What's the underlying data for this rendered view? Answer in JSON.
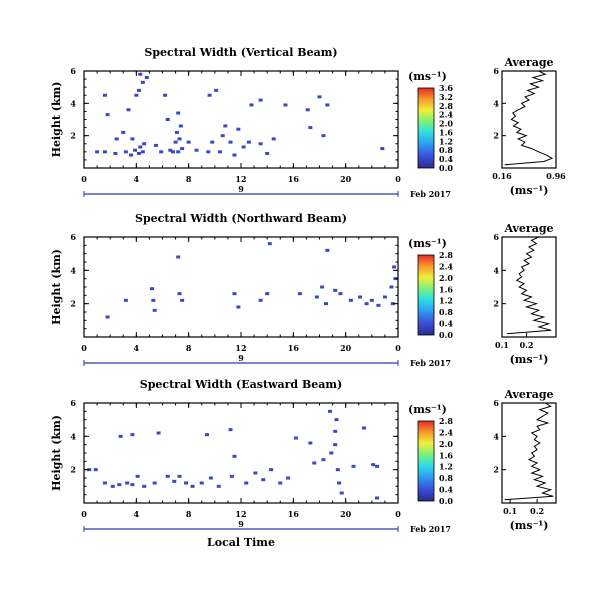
{
  "chart_data": [
    {
      "type": "heatmap",
      "title": "Spectral Width (Vertical Beam)",
      "ylabel": "Height (km)",
      "xlabel": "",
      "ylim": [
        0,
        6
      ],
      "xlim": [
        0,
        24
      ],
      "xticks": [
        "0",
        "4",
        "8",
        "12",
        "16",
        "20",
        "0"
      ],
      "yticks": [
        "2",
        "4",
        "6"
      ],
      "date_label": "9",
      "month_label": "Feb 2017",
      "colorbar": {
        "unit": "(ms⁻¹)",
        "ticks": [
          "0.0",
          "0.4",
          "0.8",
          "1.2",
          "1.6",
          "2.0",
          "2.4",
          "2.8",
          "3.2",
          "3.6"
        ]
      },
      "points": [
        [
          1.0,
          1.0
        ],
        [
          1.6,
          1.0
        ],
        [
          2.4,
          0.9
        ],
        [
          3.2,
          1.0
        ],
        [
          3.6,
          0.8
        ],
        [
          3.9,
          1.1
        ],
        [
          4.2,
          0.9
        ],
        [
          4.5,
          1.0
        ],
        [
          4.3,
          1.3
        ],
        [
          4.6,
          1.5
        ],
        [
          5.5,
          1.4
        ],
        [
          6.6,
          1.1
        ],
        [
          6.8,
          1.0
        ],
        [
          7.2,
          1.0
        ],
        [
          7.5,
          1.2
        ],
        [
          7.0,
          1.6
        ],
        [
          7.3,
          1.8
        ],
        [
          7.1,
          2.2
        ],
        [
          7.4,
          2.6
        ],
        [
          7.2,
          3.4
        ],
        [
          8.0,
          1.6
        ],
        [
          8.6,
          1.1
        ],
        [
          9.5,
          1.0
        ],
        [
          9.8,
          1.6
        ],
        [
          10.4,
          1.0
        ],
        [
          10.6,
          2.0
        ],
        [
          11.2,
          1.6
        ],
        [
          11.5,
          0.8
        ],
        [
          11.8,
          2.4
        ],
        [
          12.2,
          1.3
        ],
        [
          12.6,
          1.6
        ],
        [
          13.5,
          1.5
        ],
        [
          14.0,
          0.9
        ],
        [
          14.5,
          1.8
        ],
        [
          4.0,
          4.5
        ],
        [
          4.2,
          4.8
        ],
        [
          4.5,
          5.3
        ],
        [
          4.8,
          5.6
        ],
        [
          4.3,
          5.8
        ],
        [
          1.6,
          4.5
        ],
        [
          1.8,
          3.3
        ],
        [
          3.4,
          3.6
        ],
        [
          3.7,
          1.8
        ],
        [
          2.5,
          1.8
        ],
        [
          3.0,
          2.2
        ],
        [
          5.9,
          1.0
        ],
        [
          6.2,
          4.5
        ],
        [
          6.4,
          3.0
        ],
        [
          9.6,
          4.5
        ],
        [
          10.1,
          4.8
        ],
        [
          10.8,
          2.6
        ],
        [
          12.8,
          3.9
        ],
        [
          13.5,
          4.2
        ],
        [
          15.4,
          3.9
        ],
        [
          17.1,
          3.6
        ],
        [
          17.3,
          2.5
        ],
        [
          18.0,
          4.4
        ],
        [
          18.6,
          3.9
        ],
        [
          18.3,
          2.0
        ],
        [
          22.8,
          1.2
        ]
      ]
    },
    {
      "type": "heatmap",
      "title": "Spectral Width (Northward Beam)",
      "ylabel": "Height (km)",
      "xlabel": "",
      "ylim": [
        0,
        6
      ],
      "xlim": [
        0,
        24
      ],
      "xticks": [
        "0",
        "4",
        "8",
        "12",
        "16",
        "20",
        "0"
      ],
      "yticks": [
        "2",
        "4",
        "6"
      ],
      "date_label": "9",
      "month_label": "Feb 2017",
      "colorbar": {
        "unit": "(ms⁻¹)",
        "ticks": [
          "0.0",
          "0.4",
          "0.8",
          "1.2",
          "1.6",
          "2.0",
          "2.4",
          "2.8"
        ]
      },
      "points": [
        [
          1.8,
          1.2
        ],
        [
          3.2,
          2.2
        ],
        [
          5.2,
          2.9
        ],
        [
          5.3,
          2.2
        ],
        [
          5.4,
          1.6
        ],
        [
          7.3,
          2.6
        ],
        [
          7.5,
          2.2
        ],
        [
          7.2,
          4.8
        ],
        [
          11.5,
          2.6
        ],
        [
          11.8,
          1.8
        ],
        [
          13.5,
          2.2
        ],
        [
          14.2,
          5.6
        ],
        [
          14.0,
          2.6
        ],
        [
          16.5,
          2.6
        ],
        [
          17.8,
          2.4
        ],
        [
          18.5,
          2.0
        ],
        [
          18.2,
          3.0
        ],
        [
          18.6,
          5.2
        ],
        [
          19.2,
          2.8
        ],
        [
          19.6,
          2.6
        ],
        [
          20.4,
          2.2
        ],
        [
          21.1,
          2.4
        ],
        [
          21.6,
          2.0
        ],
        [
          22.0,
          2.2
        ],
        [
          22.5,
          1.9
        ],
        [
          23.0,
          2.4
        ],
        [
          23.5,
          3.0
        ],
        [
          23.7,
          4.2
        ],
        [
          23.8,
          3.5
        ],
        [
          23.6,
          2.0
        ]
      ]
    },
    {
      "type": "heatmap",
      "title": "Spectral Width (Eastward Beam)",
      "ylabel": "Height (km)",
      "xlabel": "Local Time",
      "ylim": [
        0,
        6
      ],
      "xlim": [
        0,
        24
      ],
      "xticks": [
        "0",
        "4",
        "8",
        "12",
        "16",
        "20",
        "0"
      ],
      "yticks": [
        "2",
        "4",
        "6"
      ],
      "date_label": "9",
      "month_label": "Feb 2017",
      "colorbar": {
        "unit": "(ms⁻¹)",
        "ticks": [
          "0.0",
          "0.4",
          "0.8",
          "1.2",
          "1.6",
          "2.0",
          "2.4",
          "2.8"
        ]
      },
      "points": [
        [
          0.4,
          2.0
        ],
        [
          0.9,
          2.0
        ],
        [
          1.6,
          1.2
        ],
        [
          2.2,
          1.0
        ],
        [
          2.7,
          1.1
        ],
        [
          3.3,
          1.2
        ],
        [
          3.7,
          1.1
        ],
        [
          4.1,
          1.6
        ],
        [
          4.6,
          1.0
        ],
        [
          5.4,
          1.2
        ],
        [
          6.4,
          1.6
        ],
        [
          6.9,
          1.3
        ],
        [
          7.3,
          1.6
        ],
        [
          7.8,
          1.2
        ],
        [
          8.3,
          1.0
        ],
        [
          9.0,
          1.2
        ],
        [
          9.7,
          1.5
        ],
        [
          10.3,
          1.0
        ],
        [
          11.3,
          1.6
        ],
        [
          11.5,
          2.8
        ],
        [
          12.4,
          1.2
        ],
        [
          13.1,
          1.8
        ],
        [
          13.7,
          1.4
        ],
        [
          14.3,
          2.0
        ],
        [
          15.0,
          1.2
        ],
        [
          15.6,
          1.5
        ],
        [
          2.8,
          4.0
        ],
        [
          3.7,
          4.1
        ],
        [
          5.7,
          4.2
        ],
        [
          9.4,
          4.1
        ],
        [
          11.2,
          4.4
        ],
        [
          16.2,
          3.9
        ],
        [
          17.3,
          3.6
        ],
        [
          17.6,
          2.4
        ],
        [
          18.3,
          2.6
        ],
        [
          18.9,
          3.0
        ],
        [
          19.2,
          3.5
        ],
        [
          18.8,
          5.5
        ],
        [
          19.3,
          5.0
        ],
        [
          19.2,
          4.3
        ],
        [
          19.4,
          2.0
        ],
        [
          19.5,
          1.2
        ],
        [
          19.7,
          0.6
        ],
        [
          20.6,
          2.2
        ],
        [
          21.4,
          4.5
        ],
        [
          22.1,
          2.3
        ],
        [
          22.4,
          2.2
        ],
        [
          22.4,
          0.3
        ]
      ]
    },
    {
      "type": "line",
      "title": "Average",
      "xlabel": "(ms⁻¹)",
      "ylabel": "",
      "xlim": [
        0.16,
        0.96
      ],
      "ylim": [
        0,
        6
      ],
      "xticks": [
        "0.16",
        "0.96"
      ],
      "yticks": [
        "2",
        "4",
        "6"
      ],
      "profile": [
        [
          0.2,
          0.2
        ],
        [
          0.78,
          0.4
        ],
        [
          0.9,
          0.6
        ],
        [
          0.82,
          0.8
        ],
        [
          0.7,
          1.0
        ],
        [
          0.6,
          1.2
        ],
        [
          0.45,
          1.4
        ],
        [
          0.5,
          1.6
        ],
        [
          0.4,
          1.8
        ],
        [
          0.52,
          2.0
        ],
        [
          0.38,
          2.2
        ],
        [
          0.44,
          2.4
        ],
        [
          0.33,
          2.6
        ],
        [
          0.4,
          2.8
        ],
        [
          0.3,
          3.0
        ],
        [
          0.36,
          3.2
        ],
        [
          0.32,
          3.4
        ],
        [
          0.4,
          3.6
        ],
        [
          0.5,
          3.8
        ],
        [
          0.45,
          4.0
        ],
        [
          0.56,
          4.2
        ],
        [
          0.5,
          4.4
        ],
        [
          0.64,
          4.6
        ],
        [
          0.54,
          4.8
        ],
        [
          0.7,
          5.0
        ],
        [
          0.58,
          5.2
        ],
        [
          0.76,
          5.4
        ],
        [
          0.62,
          5.6
        ],
        [
          0.8,
          5.8
        ],
        [
          0.7,
          6.0
        ]
      ]
    },
    {
      "type": "line",
      "title": "Average",
      "xlabel": "(ms⁻¹)",
      "ylabel": "",
      "xlim": [
        0.1,
        0.32
      ],
      "ylim": [
        0,
        6
      ],
      "xticks": [
        "0.1",
        "0.2"
      ],
      "yticks": [
        "2",
        "4",
        "6"
      ],
      "profile": [
        [
          0.12,
          0.2
        ],
        [
          0.3,
          0.4
        ],
        [
          0.25,
          0.6
        ],
        [
          0.29,
          0.8
        ],
        [
          0.23,
          1.0
        ],
        [
          0.27,
          1.2
        ],
        [
          0.22,
          1.4
        ],
        [
          0.25,
          1.6
        ],
        [
          0.2,
          1.8
        ],
        [
          0.24,
          2.0
        ],
        [
          0.19,
          2.2
        ],
        [
          0.22,
          2.4
        ],
        [
          0.18,
          2.6
        ],
        [
          0.2,
          2.8
        ],
        [
          0.17,
          3.0
        ],
        [
          0.19,
          3.2
        ],
        [
          0.16,
          3.4
        ],
        [
          0.18,
          3.6
        ],
        [
          0.17,
          3.8
        ],
        [
          0.19,
          4.0
        ],
        [
          0.18,
          4.2
        ],
        [
          0.21,
          4.4
        ],
        [
          0.19,
          4.6
        ],
        [
          0.22,
          4.8
        ],
        [
          0.2,
          5.0
        ],
        [
          0.23,
          5.2
        ],
        [
          0.21,
          5.4
        ],
        [
          0.24,
          5.6
        ],
        [
          0.22,
          5.8
        ],
        [
          0.25,
          6.0
        ]
      ]
    },
    {
      "type": "line",
      "title": "Average",
      "xlabel": "(ms⁻¹)",
      "ylabel": "",
      "xlim": [
        0.07,
        0.27
      ],
      "ylim": [
        0,
        6
      ],
      "xticks": [
        "0.1",
        "0.2"
      ],
      "yticks": [
        "2",
        "4",
        "6"
      ],
      "profile": [
        [
          0.08,
          0.2
        ],
        [
          0.26,
          0.4
        ],
        [
          0.22,
          0.6
        ],
        [
          0.25,
          0.8
        ],
        [
          0.2,
          1.0
        ],
        [
          0.23,
          1.2
        ],
        [
          0.19,
          1.4
        ],
        [
          0.22,
          1.6
        ],
        [
          0.18,
          1.8
        ],
        [
          0.21,
          2.0
        ],
        [
          0.18,
          2.2
        ],
        [
          0.2,
          2.4
        ],
        [
          0.17,
          2.6
        ],
        [
          0.19,
          2.8
        ],
        [
          0.18,
          3.0
        ],
        [
          0.2,
          3.2
        ],
        [
          0.19,
          3.4
        ],
        [
          0.21,
          3.6
        ],
        [
          0.19,
          3.8
        ],
        [
          0.2,
          4.0
        ],
        [
          0.18,
          4.2
        ],
        [
          0.21,
          4.4
        ],
        [
          0.2,
          4.6
        ],
        [
          0.24,
          4.8
        ],
        [
          0.2,
          5.0
        ],
        [
          0.22,
          5.2
        ],
        [
          0.24,
          5.4
        ],
        [
          0.21,
          5.6
        ],
        [
          0.25,
          5.8
        ],
        [
          0.23,
          6.0
        ]
      ]
    }
  ]
}
